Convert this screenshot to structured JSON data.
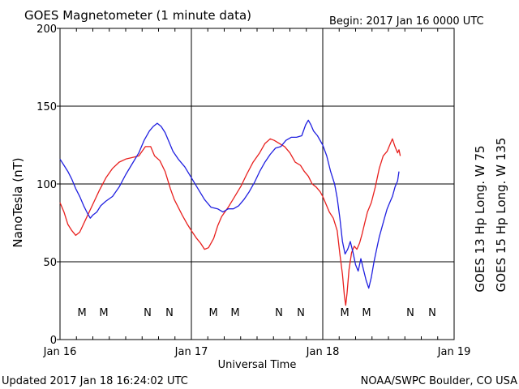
{
  "header": {
    "title": "GOES Magnetometer (1 minute data)",
    "begin_label": "Begin:  2017 Jan 16 0000 UTC"
  },
  "footer": {
    "updated": "Updated 2017 Jan 18 16:24:02 UTC",
    "credit": "NOAA/SWPC Boulder, CO USA"
  },
  "chart_data": {
    "type": "line",
    "title": "GOES Magnetometer (1 minute data)",
    "xlabel": "Universal Time",
    "ylabel": "NanoTesla (nT)",
    "x_unit": "days since 2017 Jan 16 0000 UTC",
    "xlim": [
      0,
      3
    ],
    "ylim": [
      0,
      200
    ],
    "yticks": [
      0,
      50,
      100,
      150,
      200
    ],
    "xticks": [
      {
        "x": 0,
        "label": "Jan 16"
      },
      {
        "x": 1,
        "label": "Jan 17"
      },
      {
        "x": 2,
        "label": "Jan 18"
      },
      {
        "x": 3,
        "label": "Jan 19"
      }
    ],
    "grid": true,
    "series": [
      {
        "name": "GOES 13 Hp",
        "legend": "GOES 13 Hp  Long. W 75",
        "color": "#e8201e",
        "points": [
          [
            0.0,
            88
          ],
          [
            0.03,
            82
          ],
          [
            0.06,
            74
          ],
          [
            0.09,
            70
          ],
          [
            0.12,
            67
          ],
          [
            0.15,
            69
          ],
          [
            0.2,
            78
          ],
          [
            0.25,
            87
          ],
          [
            0.3,
            96
          ],
          [
            0.35,
            104
          ],
          [
            0.4,
            110
          ],
          [
            0.45,
            114
          ],
          [
            0.5,
            116
          ],
          [
            0.55,
            117
          ],
          [
            0.6,
            118
          ],
          [
            0.65,
            124
          ],
          [
            0.69,
            124
          ],
          [
            0.72,
            118
          ],
          [
            0.76,
            115
          ],
          [
            0.8,
            108
          ],
          [
            0.84,
            97
          ],
          [
            0.87,
            90
          ],
          [
            0.9,
            85
          ],
          [
            0.93,
            80
          ],
          [
            0.97,
            74
          ],
          [
            1.0,
            70
          ],
          [
            1.04,
            65
          ],
          [
            1.07,
            62
          ],
          [
            1.1,
            58
          ],
          [
            1.13,
            59
          ],
          [
            1.17,
            65
          ],
          [
            1.2,
            73
          ],
          [
            1.23,
            79
          ],
          [
            1.28,
            85
          ],
          [
            1.33,
            92
          ],
          [
            1.38,
            99
          ],
          [
            1.42,
            106
          ],
          [
            1.47,
            114
          ],
          [
            1.52,
            120
          ],
          [
            1.56,
            126
          ],
          [
            1.6,
            129
          ],
          [
            1.63,
            128
          ],
          [
            1.67,
            126
          ],
          [
            1.71,
            124
          ],
          [
            1.75,
            120
          ],
          [
            1.79,
            114
          ],
          [
            1.83,
            112
          ],
          [
            1.86,
            108
          ],
          [
            1.89,
            105
          ],
          [
            1.92,
            100
          ],
          [
            1.95,
            98
          ],
          [
            1.98,
            95
          ],
          [
            2.0,
            92
          ],
          [
            2.02,
            88
          ],
          [
            2.05,
            82
          ],
          [
            2.08,
            78
          ],
          [
            2.11,
            70
          ],
          [
            2.13,
            55
          ],
          [
            2.15,
            42
          ],
          [
            2.165,
            28
          ],
          [
            2.175,
            22
          ],
          [
            2.185,
            30
          ],
          [
            2.2,
            45
          ],
          [
            2.22,
            56
          ],
          [
            2.24,
            60
          ],
          [
            2.26,
            58
          ],
          [
            2.28,
            62
          ],
          [
            2.3,
            68
          ],
          [
            2.32,
            75
          ],
          [
            2.34,
            82
          ],
          [
            2.37,
            88
          ],
          [
            2.4,
            98
          ],
          [
            2.43,
            110
          ],
          [
            2.46,
            118
          ],
          [
            2.49,
            121
          ],
          [
            2.51,
            125
          ],
          [
            2.53,
            129
          ],
          [
            2.55,
            124
          ],
          [
            2.57,
            120
          ],
          [
            2.58,
            122
          ],
          [
            2.59,
            118
          ]
        ]
      },
      {
        "name": "GOES 15 Hp",
        "legend": "GOES 15 Hp  Long. W 135",
        "color": "#2020e0",
        "points": [
          [
            0.0,
            116
          ],
          [
            0.03,
            112
          ],
          [
            0.06,
            108
          ],
          [
            0.09,
            103
          ],
          [
            0.12,
            97
          ],
          [
            0.15,
            92
          ],
          [
            0.18,
            86
          ],
          [
            0.21,
            81
          ],
          [
            0.23,
            78
          ],
          [
            0.25,
            80
          ],
          [
            0.28,
            82
          ],
          [
            0.31,
            86
          ],
          [
            0.35,
            89
          ],
          [
            0.4,
            92
          ],
          [
            0.45,
            98
          ],
          [
            0.5,
            106
          ],
          [
            0.55,
            113
          ],
          [
            0.6,
            120
          ],
          [
            0.64,
            128
          ],
          [
            0.68,
            134
          ],
          [
            0.71,
            137
          ],
          [
            0.74,
            139
          ],
          [
            0.77,
            137
          ],
          [
            0.8,
            133
          ],
          [
            0.83,
            127
          ],
          [
            0.86,
            121
          ],
          [
            0.9,
            116
          ],
          [
            0.95,
            111
          ],
          [
            1.0,
            104
          ],
          [
            1.05,
            97
          ],
          [
            1.1,
            90
          ],
          [
            1.15,
            85
          ],
          [
            1.2,
            84
          ],
          [
            1.24,
            82
          ],
          [
            1.28,
            84
          ],
          [
            1.32,
            84
          ],
          [
            1.36,
            86
          ],
          [
            1.4,
            90
          ],
          [
            1.44,
            95
          ],
          [
            1.48,
            101
          ],
          [
            1.52,
            108
          ],
          [
            1.56,
            114
          ],
          [
            1.6,
            119
          ],
          [
            1.64,
            123
          ],
          [
            1.68,
            124
          ],
          [
            1.72,
            128
          ],
          [
            1.76,
            130
          ],
          [
            1.8,
            130
          ],
          [
            1.84,
            131
          ],
          [
            1.87,
            138
          ],
          [
            1.89,
            141
          ],
          [
            1.91,
            138
          ],
          [
            1.93,
            134
          ],
          [
            1.96,
            131
          ],
          [
            2.0,
            125
          ],
          [
            2.03,
            118
          ],
          [
            2.06,
            108
          ],
          [
            2.09,
            100
          ],
          [
            2.11,
            91
          ],
          [
            2.13,
            78
          ],
          [
            2.15,
            63
          ],
          [
            2.17,
            55
          ],
          [
            2.19,
            58
          ],
          [
            2.21,
            63
          ],
          [
            2.23,
            56
          ],
          [
            2.25,
            48
          ],
          [
            2.27,
            44
          ],
          [
            2.29,
            52
          ],
          [
            2.31,
            45
          ],
          [
            2.33,
            38
          ],
          [
            2.35,
            33
          ],
          [
            2.37,
            40
          ],
          [
            2.39,
            50
          ],
          [
            2.41,
            58
          ],
          [
            2.43,
            66
          ],
          [
            2.45,
            72
          ],
          [
            2.47,
            78
          ],
          [
            2.49,
            84
          ],
          [
            2.51,
            88
          ],
          [
            2.53,
            92
          ],
          [
            2.55,
            98
          ],
          [
            2.57,
            102
          ],
          [
            2.58,
            108
          ]
        ]
      }
    ],
    "annotations": [
      {
        "text": "M",
        "x": 0.167,
        "series": "GOES 13 Hp"
      },
      {
        "text": "M",
        "x": 0.333,
        "series": "GOES 15 Hp"
      },
      {
        "text": "N",
        "x": 0.667,
        "series": "GOES 13 Hp"
      },
      {
        "text": "N",
        "x": 0.833,
        "series": "GOES 15 Hp"
      },
      {
        "text": "M",
        "x": 1.167,
        "series": "GOES 13 Hp"
      },
      {
        "text": "M",
        "x": 1.333,
        "series": "GOES 15 Hp"
      },
      {
        "text": "N",
        "x": 1.667,
        "series": "GOES 13 Hp"
      },
      {
        "text": "N",
        "x": 1.833,
        "series": "GOES 15 Hp"
      },
      {
        "text": "M",
        "x": 2.167,
        "series": "GOES 13 Hp"
      },
      {
        "text": "M",
        "x": 2.333,
        "series": "GOES 15 Hp"
      },
      {
        "text": "N",
        "x": 2.667,
        "series": "GOES 13 Hp"
      },
      {
        "text": "N",
        "x": 2.833,
        "series": "GOES 15 Hp"
      }
    ]
  }
}
